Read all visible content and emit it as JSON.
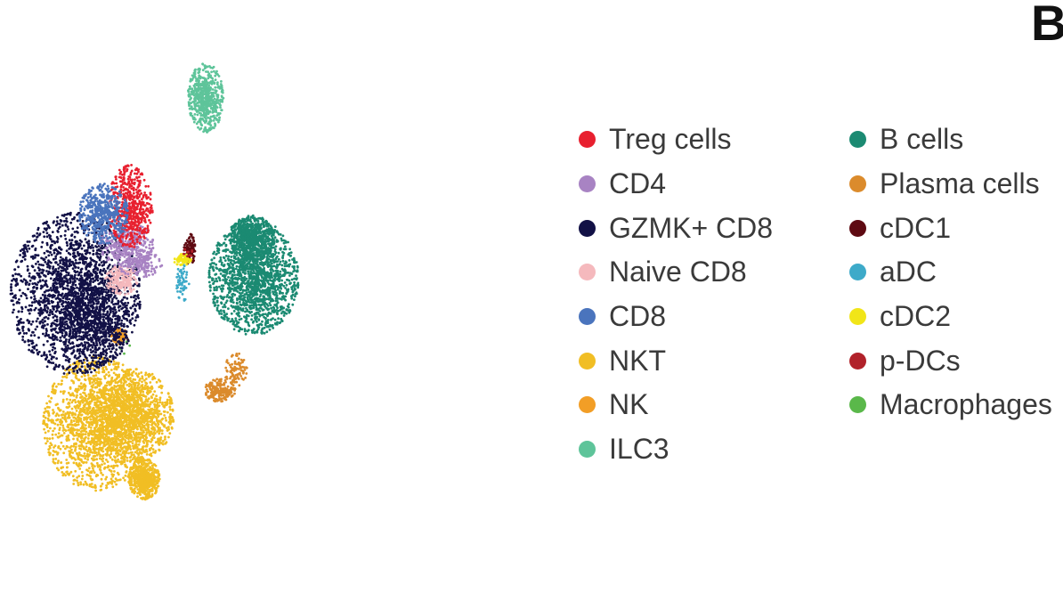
{
  "panel_label": "B",
  "chart_data": {
    "type": "scatter",
    "title": "",
    "xlabel": "",
    "ylabel": "",
    "grid": false,
    "axes_visible": false,
    "legend_placement": "right",
    "xlim": [
      0,
      100
    ],
    "ylim": [
      0,
      100
    ],
    "series": [
      {
        "name": "Treg cells",
        "color": "#e8202f",
        "n": 550,
        "blobs": [
          {
            "cx": 19.7,
            "cy": 65.8,
            "sx": 2.0,
            "sy": 3.6,
            "w": 1
          }
        ]
      },
      {
        "name": "CD4",
        "color": "#a883c3",
        "n": 500,
        "blobs": [
          {
            "cx": 19.0,
            "cy": 59.0,
            "sx": 2.4,
            "sy": 2.0,
            "w": 2
          },
          {
            "cx": 21.5,
            "cy": 55.5,
            "sx": 2.0,
            "sy": 1.2,
            "w": 1
          }
        ]
      },
      {
        "name": "GZMK+ CD8",
        "color": "#121146",
        "n": 2600,
        "blobs": [
          {
            "cx": 9.5,
            "cy": 50.0,
            "sx": 5.8,
            "sy": 7.0,
            "w": 3
          },
          {
            "cx": 13.0,
            "cy": 45.0,
            "sx": 3.2,
            "sy": 4.0,
            "w": 1
          }
        ]
      },
      {
        "name": "Naive CD8",
        "color": "#f5b9bd",
        "n": 200,
        "blobs": [
          {
            "cx": 18.2,
            "cy": 52.5,
            "sx": 1.5,
            "sy": 1.3,
            "w": 1
          }
        ]
      },
      {
        "name": "CD8",
        "color": "#4a74bd",
        "n": 520,
        "blobs": [
          {
            "cx": 14.7,
            "cy": 64.5,
            "sx": 2.2,
            "sy": 2.6,
            "w": 1
          }
        ]
      },
      {
        "name": "NKT",
        "color": "#f1be24",
        "n": 3400,
        "blobs": [
          {
            "cx": 13.5,
            "cy": 26.5,
            "sx": 4.8,
            "sy": 5.8,
            "w": 3
          },
          {
            "cx": 20.5,
            "cy": 28.0,
            "sx": 3.5,
            "sy": 4.0,
            "w": 2
          },
          {
            "cx": 22.3,
            "cy": 16.5,
            "sx": 1.4,
            "sy": 1.8,
            "w": 1
          }
        ]
      },
      {
        "name": "NK",
        "color": "#f29e26",
        "n": 90,
        "blobs": [
          {
            "cx": 17.8,
            "cy": 42.3,
            "sx": 0.8,
            "sy": 0.7,
            "w": 1
          }
        ]
      },
      {
        "name": "ILC3",
        "color": "#5ec49a",
        "n": 550,
        "blobs": [
          {
            "cx": 33.8,
            "cy": 85.5,
            "sx": 1.6,
            "sy": 3.0,
            "w": 1
          }
        ]
      },
      {
        "name": "B cells",
        "color": "#1b8a72",
        "n": 2300,
        "blobs": [
          {
            "cx": 42.8,
            "cy": 53.0,
            "sx": 4.0,
            "sy": 5.0,
            "w": 3
          },
          {
            "cx": 42.5,
            "cy": 60.0,
            "sx": 2.0,
            "sy": 2.0,
            "w": 1
          }
        ]
      },
      {
        "name": "Plasma cells",
        "color": "#db8b2c",
        "n": 300,
        "blobs": [
          {
            "cx": 36.5,
            "cy": 32.5,
            "sx": 1.4,
            "sy": 1.0,
            "w": 2
          },
          {
            "cx": 39.5,
            "cy": 36.0,
            "sx": 1.0,
            "sy": 1.6,
            "w": 1
          }
        ]
      },
      {
        "name": "cDC1",
        "color": "#5e0a12",
        "n": 120,
        "blobs": [
          {
            "cx": 30.8,
            "cy": 58.0,
            "sx": 0.5,
            "sy": 1.4,
            "w": 1
          }
        ]
      },
      {
        "name": "aDC",
        "color": "#3daac9",
        "n": 60,
        "blobs": [
          {
            "cx": 29.5,
            "cy": 52.0,
            "sx": 0.6,
            "sy": 1.6,
            "w": 1
          }
        ]
      },
      {
        "name": "cDC2",
        "color": "#f1e518",
        "n": 60,
        "blobs": [
          {
            "cx": 29.4,
            "cy": 56.2,
            "sx": 0.8,
            "sy": 0.5,
            "w": 1
          }
        ]
      },
      {
        "name": "p-DCs",
        "color": "#b1222a",
        "n": 10,
        "blobs": [
          {
            "cx": 30.5,
            "cy": 57.5,
            "sx": 0.4,
            "sy": 0.4,
            "w": 1
          }
        ]
      },
      {
        "name": "Macrophages",
        "color": "#5ab84a",
        "n": 6,
        "blobs": [
          {
            "cx": 18.5,
            "cy": 41.0,
            "sx": 1.0,
            "sy": 1.0,
            "w": 1
          }
        ]
      }
    ]
  }
}
